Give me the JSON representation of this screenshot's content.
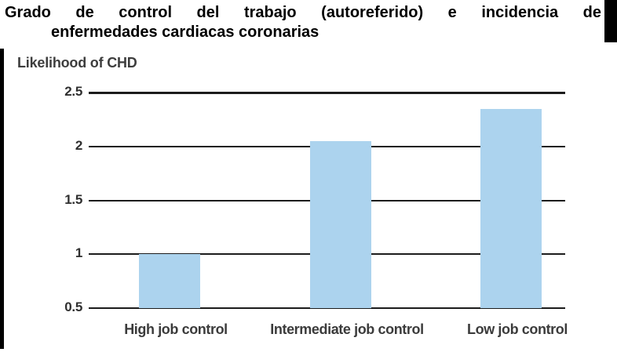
{
  "title": {
    "line1": "Grado de control del trabajo (autoreferido) e incidencia de",
    "line2": "enfermedades cardiacas coronarias"
  },
  "chart_data": {
    "type": "bar",
    "title": "Likelihood of CHD",
    "categories": [
      "High job control",
      "Intermediate job control",
      "Low job control"
    ],
    "values": [
      1.0,
      2.05,
      2.35
    ],
    "baseline": 0.5,
    "ylim": [
      0.5,
      2.5
    ],
    "yticks": [
      2.5,
      2,
      1.5,
      1,
      0.5
    ],
    "grid": true,
    "legend": "none",
    "xlabel": "",
    "ylabel": "",
    "bar_color": "#ACD3EE",
    "gridline_color": "#1c1c1c"
  },
  "colors": {
    "decorative_black_bars": "#000000",
    "chart_text": "#3b3b3b",
    "title_text": "#000000",
    "background": "#ffffff"
  }
}
